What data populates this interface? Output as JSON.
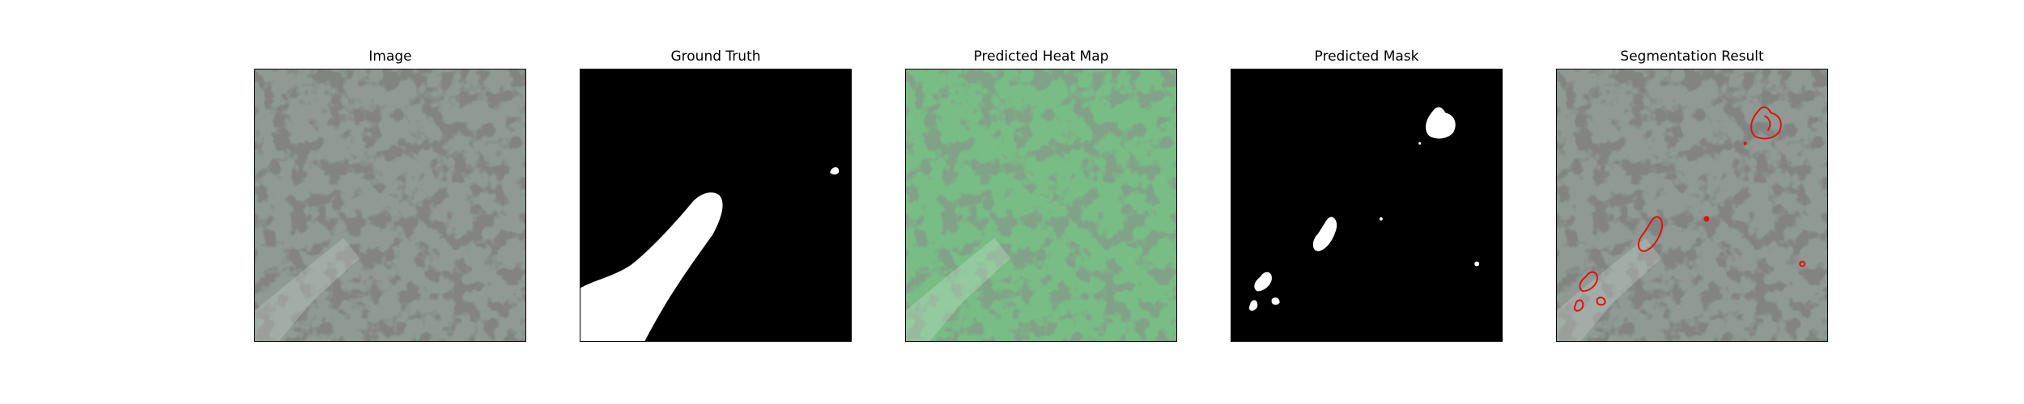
{
  "panels": [
    {
      "title": "Image"
    },
    {
      "title": "Ground Truth"
    },
    {
      "title": "Predicted Heat Map"
    },
    {
      "title": "Predicted Mask"
    },
    {
      "title": "Segmentation Result"
    }
  ],
  "colors": {
    "background": "#ffffff",
    "terrain_light": "#8f9a94",
    "terrain_dark": "#3a3d3b",
    "heat_overlay": "#6fbf7a",
    "mask_background": "#000000",
    "mask_foreground": "#ffffff",
    "segmentation_outline": "#e01010"
  }
}
